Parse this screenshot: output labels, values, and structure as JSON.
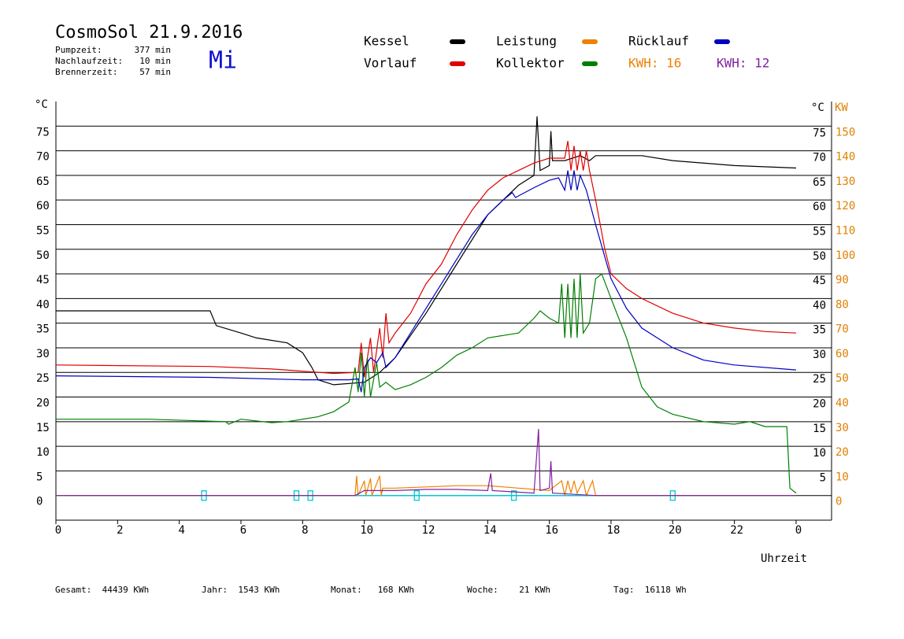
{
  "chart_data": {
    "type": "line",
    "title": "CosmoSol 21.9.2016",
    "day": "Mi",
    "info": [
      {
        "label": "Pumpzeit:",
        "value": "377 min"
      },
      {
        "label": "Nachlaufzeit:",
        "value": "10 min"
      },
      {
        "label": "Brennerzeit:",
        "value": "57 min"
      }
    ],
    "y_label": "°C",
    "y2_unit_label": "°C",
    "y2_label": "KW",
    "x_label": "Uhrzeit",
    "footer": [
      "Gesamt:  44439 KWh",
      "Jahr:  1543 KWh",
      "Monat:   168 KWh",
      "Woche:    21 KWh",
      "Tag:  16118 Wh"
    ],
    "xlim": [
      0,
      25.15
    ],
    "xticks": [
      0,
      2,
      4,
      6,
      8,
      10,
      12,
      14,
      16,
      18,
      20,
      22,
      {
        "value": 24,
        "label": "0"
      }
    ],
    "ylim": [
      -5,
      80
    ],
    "yticks": [
      0,
      5,
      10,
      15,
      20,
      25,
      30,
      35,
      40,
      45,
      50,
      55,
      60,
      65,
      70,
      75
    ],
    "y2lim": [
      -10,
      160
    ],
    "y2ticks": [
      0,
      10,
      20,
      30,
      40,
      50,
      60,
      70,
      80,
      90,
      100,
      110,
      120,
      130,
      140,
      150
    ],
    "grid": true,
    "series": [
      {
        "name": "Kessel",
        "color": "#000000",
        "x": [
          0,
          5,
          5.2,
          6,
          6.5,
          7.5,
          8,
          8.3,
          8.5,
          9,
          10,
          10.5,
          11,
          12,
          13,
          14,
          14.5,
          15,
          15.5,
          15.6,
          15.7,
          16,
          16.05,
          16.1,
          16.5,
          17,
          17.3,
          17.5,
          18,
          19,
          20,
          22,
          24
        ],
        "values": [
          37.5,
          37.5,
          34.5,
          33,
          32,
          31,
          29,
          26,
          23.5,
          22.5,
          23,
          25,
          28,
          37,
          47,
          57,
          60,
          63,
          65,
          77,
          66,
          67,
          74,
          68,
          68,
          69,
          68,
          69,
          69,
          69,
          68,
          67,
          66.5
        ]
      },
      {
        "name": "Vorlauf",
        "color": "#e00000",
        "x": [
          0,
          5,
          7,
          9,
          9.8,
          9.9,
          10,
          10.2,
          10.3,
          10.5,
          10.6,
          10.7,
          10.8,
          11,
          11.5,
          12,
          12.5,
          13,
          13.5,
          14,
          14.5,
          15,
          15.5,
          16,
          16.5,
          16.6,
          16.7,
          16.8,
          16.9,
          17,
          17.1,
          17.2,
          17.3,
          17.5,
          17.8,
          18,
          18.5,
          19,
          20,
          21,
          22,
          23,
          24
        ],
        "values": [
          26.5,
          26.2,
          25.7,
          24.8,
          25,
          31,
          24,
          32,
          25,
          34,
          28,
          37,
          31,
          33,
          37,
          43,
          47,
          53,
          58,
          62,
          64.5,
          66,
          67.5,
          68.5,
          68.5,
          72,
          66,
          71,
          66,
          70,
          66,
          70,
          66,
          60,
          50,
          45,
          42,
          40,
          37,
          35,
          34,
          33.3,
          33
        ]
      },
      {
        "name": "Leistung",
        "color": "#f08000",
        "axis": "y2",
        "total": "KWH: 16",
        "x": [
          0,
          9.7,
          9.75,
          9.8,
          10,
          10.05,
          10.2,
          10.25,
          10.5,
          10.55,
          10.6,
          11,
          12,
          13,
          14,
          15,
          16,
          16.4,
          16.5,
          16.6,
          16.7,
          16.8,
          16.9,
          17.1,
          17.2,
          17.4,
          17.5,
          24
        ],
        "values": [
          0,
          0,
          8,
          0,
          6,
          0,
          7,
          0,
          8,
          0,
          3,
          3,
          3.5,
          4,
          4,
          3,
          2,
          6,
          0,
          6,
          1,
          6,
          1,
          6,
          0,
          6,
          0,
          0
        ]
      },
      {
        "name": "Kollektor",
        "color": "#008000",
        "x": [
          0,
          3,
          5.5,
          5.6,
          6,
          7,
          7.5,
          8.5,
          9,
          9.5,
          9.7,
          9.8,
          9.9,
          10,
          10.1,
          10.2,
          10.4,
          10.5,
          10.7,
          11,
          11.5,
          12,
          12.5,
          13,
          13.5,
          14,
          14.5,
          15,
          15.5,
          15.7,
          16,
          16.3,
          16.4,
          16.5,
          16.6,
          16.7,
          16.8,
          16.9,
          17,
          17.1,
          17.3,
          17.5,
          17.7,
          18,
          18.5,
          19,
          19.5,
          20,
          21,
          22,
          22.5,
          23,
          23.7,
          23.8,
          24
        ],
        "values": [
          15.5,
          15.5,
          15,
          14.5,
          15.5,
          14.8,
          15,
          16,
          17,
          19,
          26,
          21,
          29,
          20,
          28,
          20,
          27,
          22,
          23,
          21.5,
          22.5,
          24,
          26,
          28.5,
          30,
          32,
          32.5,
          33,
          36,
          37.5,
          36,
          35,
          43,
          32,
          43,
          32,
          44,
          32,
          45,
          33,
          35,
          44,
          45,
          40,
          32,
          22,
          18,
          16.5,
          15,
          14.5,
          15,
          14,
          14,
          1.5,
          0.5
        ]
      },
      {
        "name": "Rücklauf",
        "color": "#0000c0",
        "x": [
          0,
          5,
          8,
          9.5,
          9.8,
          9.9,
          10,
          10.2,
          10.4,
          10.6,
          10.7,
          11,
          11.5,
          12,
          12.5,
          13,
          13.5,
          14,
          14.5,
          14.8,
          14.9,
          15.5,
          16,
          16.3,
          16.5,
          16.6,
          16.7,
          16.8,
          16.9,
          17,
          17.2,
          17.5,
          18,
          18.5,
          19,
          20,
          21,
          22,
          24
        ],
        "values": [
          24.3,
          24,
          23.5,
          23.5,
          23.7,
          21,
          26,
          28,
          27,
          29,
          26,
          28,
          33,
          38,
          43,
          48,
          53,
          57,
          60,
          61.5,
          60.5,
          62.5,
          64,
          64.5,
          62,
          66,
          62,
          66,
          62,
          65,
          62,
          55,
          44,
          38,
          34,
          30,
          27.5,
          26.5,
          25.5
        ]
      },
      {
        "color": "#8020a0",
        "axis": "y2",
        "total": "KWH: 12",
        "x": [
          0,
          9.7,
          10,
          11,
          12,
          13,
          14,
          14.1,
          14.15,
          15.5,
          15.65,
          15.7,
          16,
          16.05,
          16.1,
          17.5,
          24
        ],
        "values": [
          0,
          0,
          2,
          2,
          2.5,
          2.5,
          2,
          9,
          2,
          1,
          27,
          2,
          3,
          14,
          1,
          0,
          0
        ]
      }
    ],
    "events": {
      "color": "#00c8d8",
      "x": [
        4.8,
        7.8,
        8.25,
        11.7,
        14.85,
        20
      ]
    }
  }
}
